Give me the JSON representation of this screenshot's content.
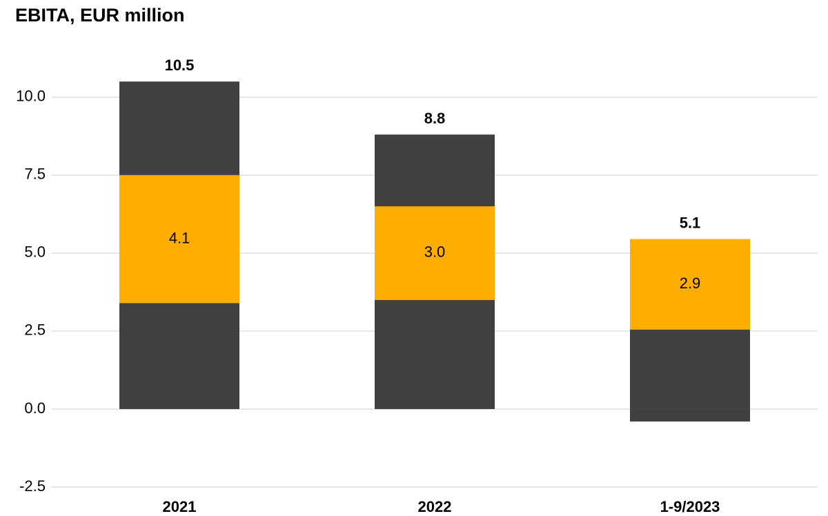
{
  "chart_data": {
    "type": "stacked_bar",
    "title": "EBITA, EUR million",
    "categories": [
      "2021",
      "2022",
      "1-9/2023"
    ],
    "series": [
      {
        "color": "#404041",
        "values": [
          null,
          null,
          -0.4
        ]
      },
      {
        "color": "#404041",
        "values": [
          3.4,
          3.5,
          2.55
        ]
      },
      {
        "color": "#ffad00",
        "values": [
          4.1,
          3.0,
          2.9
        ],
        "value_labels": [
          "4.1",
          "3.0",
          "2.9"
        ]
      },
      {
        "color": "#404041",
        "values": [
          3.0,
          2.3,
          null
        ]
      }
    ],
    "totals": [
      10.5,
      8.8,
      5.1
    ],
    "ylim": [
      -2.5,
      11.5
    ],
    "yticks": [
      -2.5,
      {
        "value": 0,
        "label": "0.0"
      },
      2.5,
      {
        "value": 5,
        "label": "5.0"
      },
      7.5,
      {
        "value": 10,
        "label": "10.0"
      }
    ],
    "grid": true
  }
}
